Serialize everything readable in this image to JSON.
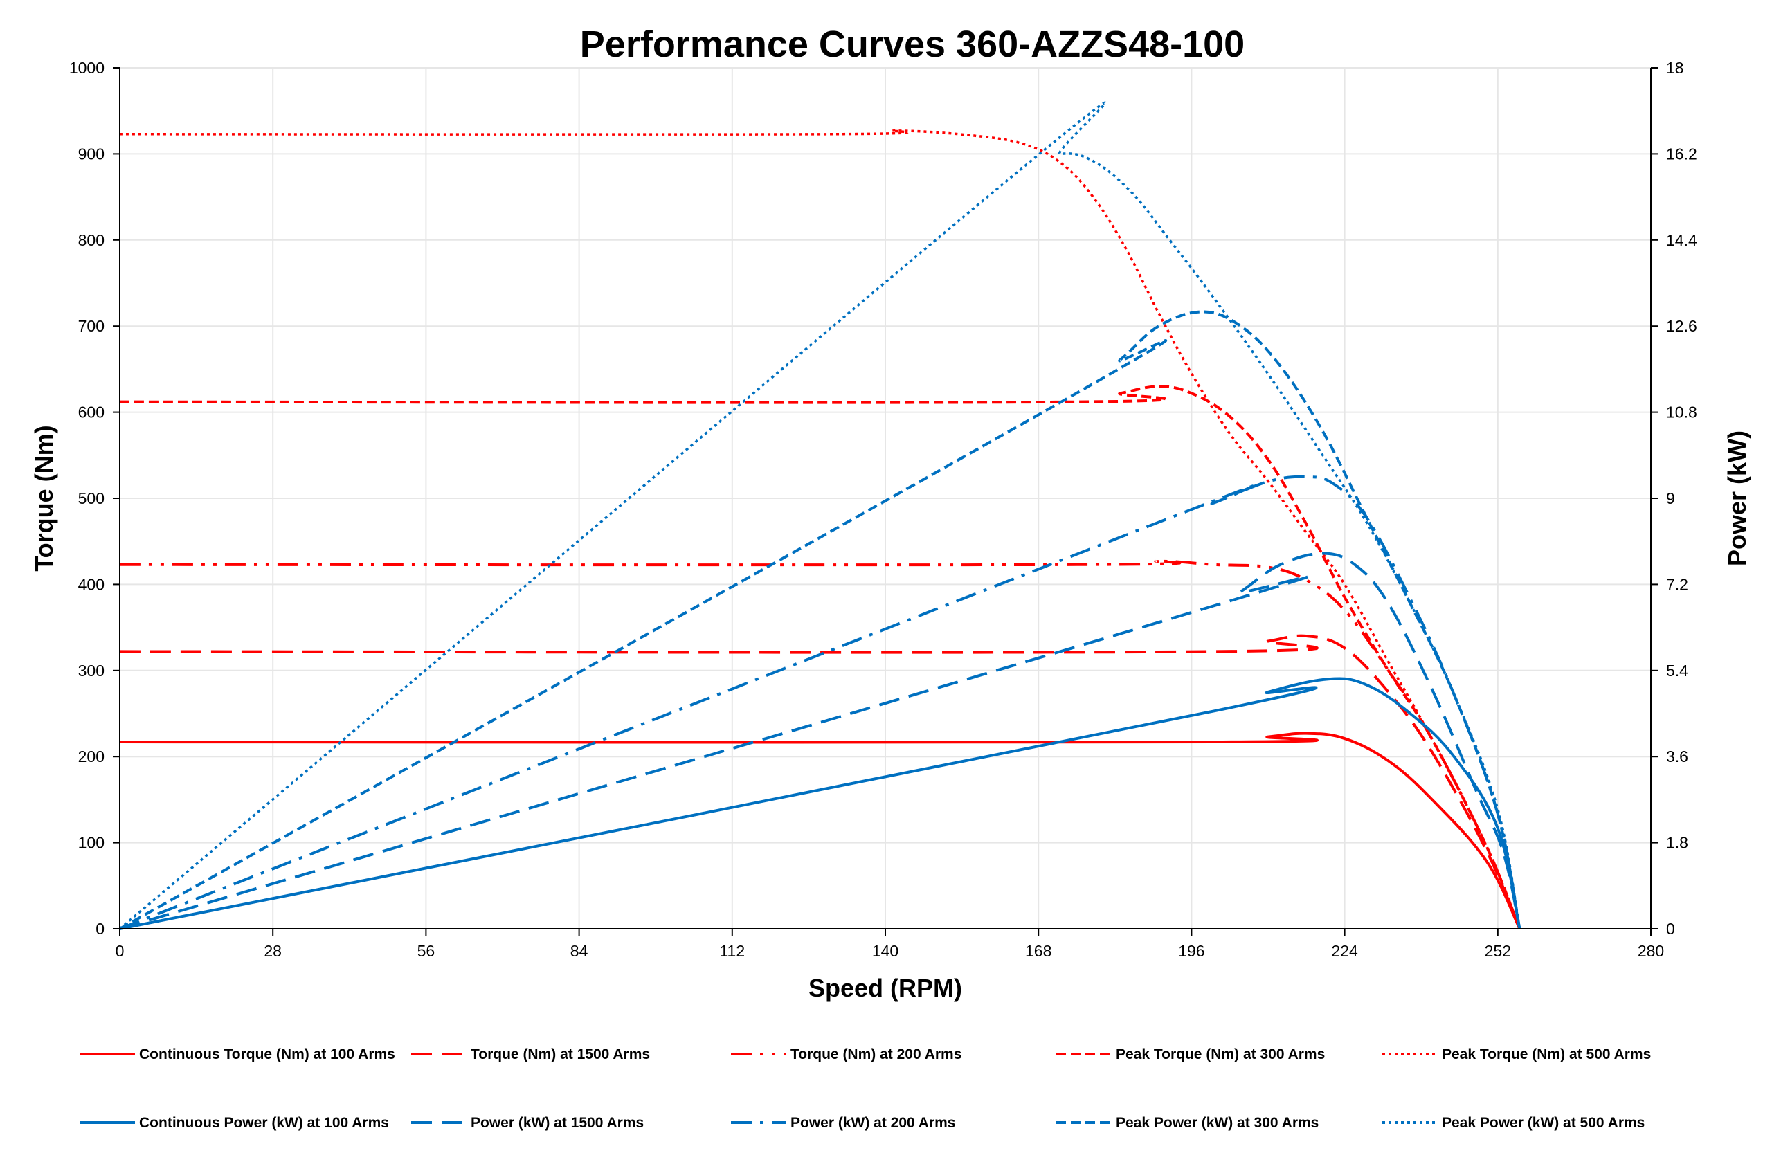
{
  "chart_data": {
    "type": "line",
    "title": "Performance Curves 360-AZZS48-100",
    "xlabel": "Speed (RPM)",
    "ylabel": "Torque (Nm)",
    "y2label": "Power (kW)",
    "xlim": [
      0,
      280
    ],
    "ylim": [
      0,
      1000
    ],
    "y2lim": [
      0,
      18
    ],
    "xticks": [
      0,
      28,
      56,
      84,
      112,
      140,
      168,
      196,
      224,
      252,
      280
    ],
    "yticks": [
      0,
      100,
      200,
      300,
      400,
      500,
      600,
      700,
      800,
      900,
      1000
    ],
    "y2ticks": [
      "0",
      "1.8",
      "3.6",
      "5.4",
      "7.2",
      "9",
      "10.8",
      "12.6",
      "14.4",
      "16.2",
      "18"
    ],
    "grid": true,
    "legend_position": "bottom",
    "colors": {
      "torque": "#ff0000",
      "power": "#0070c0"
    },
    "series": [
      {
        "name": "Continuous Torque (Nm) at 100 Arms",
        "axis": "left",
        "color": "#ff0000",
        "style": "solid",
        "x": [
          0,
          200,
          210,
          217,
          224,
          232,
          240,
          250,
          256
        ],
        "y": [
          217,
          217,
          223,
          227,
          221,
          195,
          150,
          78,
          0
        ]
      },
      {
        "name": "Torque (Nm) at 1500 Arms",
        "axis": "left",
        "color": "#ff0000",
        "style": "dash",
        "x": [
          0,
          200,
          210,
          217,
          224,
          232,
          240,
          250,
          256
        ],
        "y": [
          322,
          322,
          334,
          340,
          326,
          275,
          205,
          90,
          0
        ]
      },
      {
        "name": "Torque (Nm) at 200 Arms",
        "axis": "left",
        "color": "#ff0000",
        "style": "dash-dot-dot",
        "x": [
          0,
          175,
          190,
          200,
          210,
          217,
          224,
          232,
          240,
          250,
          256
        ],
        "y": [
          423,
          423,
          427,
          423,
          420,
          405,
          370,
          300,
          220,
          95,
          0
        ]
      },
      {
        "name": "Peak Torque (Nm) at 300 Arms",
        "axis": "left",
        "color": "#ff0000",
        "style": "short-dash",
        "x": [
          0,
          175,
          183,
          190,
          196,
          203,
          210,
          217,
          224,
          232,
          240,
          250,
          256
        ],
        "y": [
          612,
          612,
          622,
          630,
          622,
          595,
          545,
          470,
          385,
          300,
          220,
          95,
          0
        ]
      },
      {
        "name": "Peak Torque (Nm) at 500 Arms",
        "axis": "left",
        "color": "#ff0000",
        "style": "dot",
        "x": [
          0,
          130,
          142,
          155,
          165,
          172,
          178,
          184,
          190,
          196,
          203,
          210,
          217,
          224,
          232,
          240,
          250,
          256
        ],
        "y": [
          923,
          923,
          927,
          922,
          912,
          890,
          850,
          790,
          715,
          645,
          575,
          520,
          460,
          400,
          310,
          220,
          95,
          0
        ]
      },
      {
        "name": "Continuous Power (kW) at 100 Arms",
        "axis": "right",
        "color": "#0070c0",
        "style": "solid",
        "x": [
          0,
          200,
          210,
          221,
          228,
          236,
          244,
          252,
          256
        ],
        "y": [
          0,
          4.55,
          4.95,
          5.22,
          5.1,
          4.5,
          3.6,
          2.1,
          0
        ]
      },
      {
        "name": "Power (kW) at 1500 Arms",
        "axis": "right",
        "color": "#0070c0",
        "style": "dash",
        "x": [
          0,
          200,
          205,
          212,
          220,
          226,
          232,
          240,
          248,
          253,
          256
        ],
        "y": [
          0,
          6.75,
          7.05,
          7.6,
          7.85,
          7.6,
          6.8,
          5.0,
          2.9,
          1.6,
          0
        ]
      },
      {
        "name": "Power (kW) at 200 Arms",
        "axis": "right",
        "color": "#0070c0",
        "style": "dash-dot",
        "x": [
          0,
          190,
          200,
          210,
          217,
          222,
          228,
          236,
          244,
          252,
          256
        ],
        "y": [
          0,
          8.5,
          8.9,
          9.35,
          9.45,
          9.3,
          8.6,
          6.9,
          4.9,
          2.4,
          0
        ]
      },
      {
        "name": "Peak Power (kW) at 300 Arms",
        "axis": "right",
        "color": "#0070c0",
        "style": "short-dash",
        "x": [
          0,
          175,
          183,
          190,
          198,
          205,
          212,
          220,
          228,
          236,
          244,
          252,
          256
        ],
        "y": [
          0,
          11.2,
          11.9,
          12.6,
          12.9,
          12.6,
          11.8,
          10.4,
          8.6,
          6.8,
          4.9,
          2.4,
          0
        ]
      },
      {
        "name": "Peak Power (kW) at 500 Arms",
        "axis": "right",
        "color": "#0070c0",
        "style": "dot",
        "x": [
          0,
          165,
          172,
          178,
          185,
          192,
          200,
          210,
          220,
          228,
          236,
          244,
          252,
          256
        ],
        "y": [
          0,
          15.9,
          16.2,
          16.05,
          15.4,
          14.4,
          13.2,
          11.6,
          9.9,
          8.5,
          6.8,
          4.9,
          2.5,
          0
        ]
      }
    ]
  }
}
